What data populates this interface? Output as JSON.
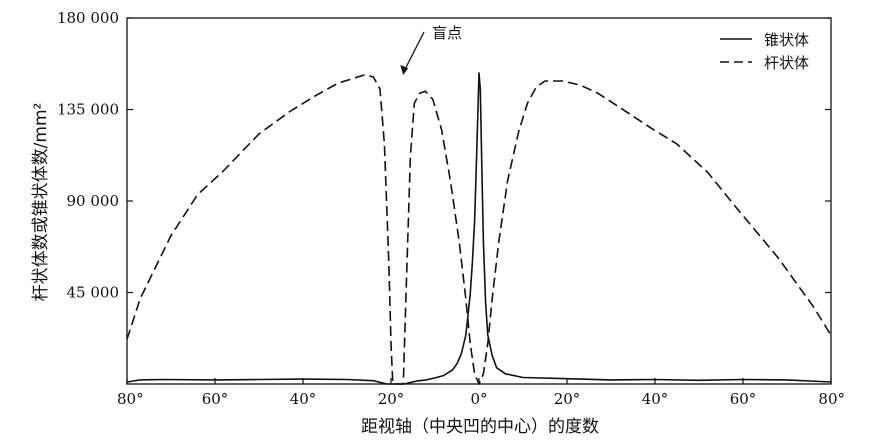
{
  "chart_data": {
    "type": "line",
    "title": "",
    "xlabel": "距视轴（中央凹的中心）的度数",
    "ylabel": "杆状体数或锥状体数/mm²",
    "xlim": [
      -80,
      80
    ],
    "ylim": [
      0,
      180000
    ],
    "x_ticks": [
      -80,
      -60,
      -40,
      -20,
      0,
      20,
      40,
      60,
      80
    ],
    "x_tick_labels": [
      "80°",
      "60°",
      "40°",
      "20°",
      "0°",
      "20°",
      "40°",
      "60°",
      "80°"
    ],
    "y_ticks": [
      45000,
      90000,
      135000,
      180000
    ],
    "y_tick_labels": [
      "45 000",
      "90 000",
      "135 000",
      "180 000"
    ],
    "grid": false,
    "legend_position": "top-right",
    "legend": [
      {
        "label": "锥状体",
        "style": "solid"
      },
      {
        "label": "杆状体",
        "style": "dashed"
      }
    ],
    "series": [
      {
        "name": "锥状体",
        "style": "solid",
        "color": "#111111",
        "points": [
          [
            -80,
            1000
          ],
          [
            -77,
            2000
          ],
          [
            -72,
            2200
          ],
          [
            -60,
            2000
          ],
          [
            -50,
            2200
          ],
          [
            -40,
            2400
          ],
          [
            -30,
            2200
          ],
          [
            -24,
            1600
          ],
          [
            -21,
            0
          ],
          [
            -17,
            0
          ],
          [
            -14,
            1500
          ],
          [
            -12,
            2000
          ],
          [
            -10,
            3000
          ],
          [
            -8,
            4200
          ],
          [
            -6,
            7000
          ],
          [
            -5,
            10000
          ],
          [
            -4,
            15000
          ],
          [
            -3,
            24000
          ],
          [
            -2,
            44000
          ],
          [
            -1.5,
            60000
          ],
          [
            -1,
            80000
          ],
          [
            -0.5,
            115000
          ],
          [
            0,
            153000
          ],
          [
            0.3,
            145000
          ],
          [
            0.7,
            100000
          ],
          [
            1,
            70000
          ],
          [
            1.5,
            40000
          ],
          [
            2,
            24000
          ],
          [
            3,
            14000
          ],
          [
            4,
            8000
          ],
          [
            6,
            5000
          ],
          [
            10,
            3200
          ],
          [
            20,
            2600
          ],
          [
            30,
            2000
          ],
          [
            40,
            2200
          ],
          [
            50,
            1800
          ],
          [
            60,
            2200
          ],
          [
            70,
            2000
          ],
          [
            80,
            1000
          ]
        ]
      },
      {
        "name": "杆状体",
        "style": "dashed",
        "color": "#111111",
        "points": [
          [
            -80,
            22000
          ],
          [
            -77,
            42000
          ],
          [
            -70,
            73000
          ],
          [
            -64,
            93000
          ],
          [
            -58,
            105000
          ],
          [
            -50,
            123000
          ],
          [
            -43,
            134000
          ],
          [
            -37,
            142000
          ],
          [
            -32,
            148000
          ],
          [
            -26,
            152000
          ],
          [
            -24,
            151000
          ],
          [
            -22.5,
            145000
          ],
          [
            -21.5,
            118000
          ],
          [
            -20.5,
            60000
          ],
          [
            -20,
            20000
          ],
          [
            -19.6,
            0
          ],
          [
            -17.2,
            0
          ],
          [
            -16.5,
            50000
          ],
          [
            -15.6,
            112000
          ],
          [
            -14.7,
            138000
          ],
          [
            -13.5,
            143000
          ],
          [
            -12.2,
            144000
          ],
          [
            -10.5,
            140000
          ],
          [
            -8.5,
            125000
          ],
          [
            -6.5,
            100000
          ],
          [
            -4.5,
            70000
          ],
          [
            -3,
            42000
          ],
          [
            -2,
            20000
          ],
          [
            -1,
            5000
          ],
          [
            0,
            0
          ],
          [
            1,
            5000
          ],
          [
            2,
            20000
          ],
          [
            3,
            42000
          ],
          [
            4.5,
            70000
          ],
          [
            6.5,
            100000
          ],
          [
            9,
            124000
          ],
          [
            11,
            138000
          ],
          [
            13,
            146000
          ],
          [
            15,
            149000
          ],
          [
            19,
            149000
          ],
          [
            23,
            147000
          ],
          [
            27,
            143000
          ],
          [
            32,
            136000
          ],
          [
            39,
            126000
          ],
          [
            45,
            118000
          ],
          [
            52,
            104000
          ],
          [
            58,
            88000
          ],
          [
            63,
            75000
          ],
          [
            68,
            62000
          ],
          [
            72,
            50000
          ],
          [
            76,
            38000
          ],
          [
            80,
            24000
          ]
        ]
      }
    ],
    "annotations": [
      {
        "text": "盲点",
        "x": -17,
        "y": 150000
      }
    ]
  }
}
